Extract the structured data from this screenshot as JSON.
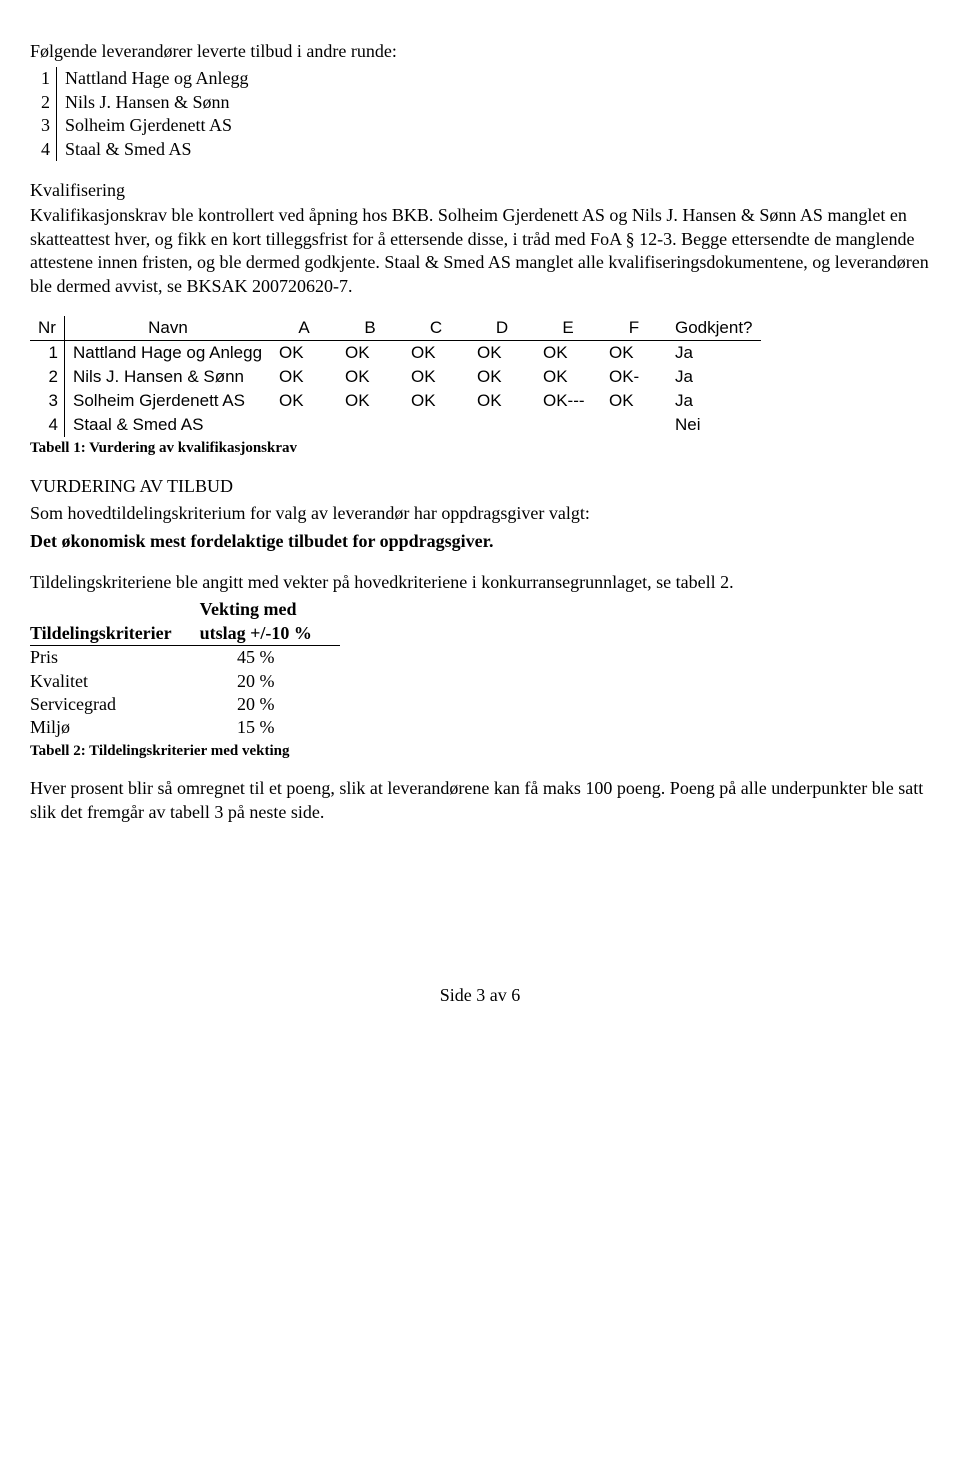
{
  "intro_line": "Følgende leverandører leverte tilbud i andre runde:",
  "suppliers": [
    {
      "nr": "1",
      "name": "Nattland Hage og Anlegg"
    },
    {
      "nr": "2",
      "name": "Nils J. Hansen & Sønn"
    },
    {
      "nr": "3",
      "name": "Solheim Gjerdenett AS"
    },
    {
      "nr": "4",
      "name": "Staal & Smed AS"
    }
  ],
  "kvalifisering": {
    "heading": "Kvalifisering",
    "body": "Kvalifikasjonskrav ble kontrollert ved åpning hos BKB. Solheim Gjerdenett AS og Nils J. Hansen & Sønn AS manglet en skatteattest hver, og fikk en kort tilleggsfrist for å ettersende disse, i tråd med FoA § 12-3. Begge ettersendte de manglende attestene innen fristen, og ble dermed godkjente. Staal & Smed AS manglet alle kvalifiseringsdokumentene, og leverandøren ble dermed avvist, se BKSAK 200720620-7."
  },
  "qual_table": {
    "headers": {
      "nr": "Nr",
      "navn": "Navn",
      "a": "A",
      "b": "B",
      "c": "C",
      "d": "D",
      "e": "E",
      "f": "F",
      "godkjent": "Godkjent?"
    },
    "rows": [
      {
        "nr": "1",
        "navn": "Nattland Hage og Anlegg",
        "a": "OK",
        "b": "OK",
        "c": "OK",
        "d": "OK",
        "e": "OK",
        "f": "OK",
        "godkjent": "Ja"
      },
      {
        "nr": "2",
        "navn": "Nils J. Hansen & Sønn",
        "a": "OK",
        "b": "OK",
        "c": "OK",
        "d": "OK",
        "e": "OK",
        "f": "OK-",
        "godkjent": "Ja"
      },
      {
        "nr": "3",
        "navn": "Solheim Gjerdenett AS",
        "a": "OK",
        "b": "OK",
        "c": "OK",
        "d": "OK",
        "e": "OK---",
        "f": "OK",
        "godkjent": "Ja"
      },
      {
        "nr": "4",
        "navn": "Staal & Smed AS",
        "a": "",
        "b": "",
        "c": "",
        "d": "",
        "e": "",
        "f": "",
        "godkjent": "Nei"
      }
    ],
    "caption": "Tabell 1: Vurdering av kvalifikasjonskrav"
  },
  "vurdering": {
    "heading": "VURDERING AV TILBUD",
    "line": "Som hovedtildelingskriterium for valg av leverandør har oppdragsgiver valgt:",
    "bold_line": "Det økonomisk mest fordelaktige tilbudet for oppdragsgiver."
  },
  "weighting_intro": "Tildelingskriteriene ble angitt med vekter på hovedkriteriene i konkurransegrunnlaget, se tabell 2.",
  "weight_table": {
    "col1_header": "Tildelingskriterier",
    "col2_header_line1": "Vekting med",
    "col2_header_line2": "utslag +/-10 %",
    "rows": [
      {
        "label": "Pris",
        "value": "45 %"
      },
      {
        "label": "Kvalitet",
        "value": "20 %"
      },
      {
        "label": "Servicegrad",
        "value": "20 %"
      },
      {
        "label": "Miljø",
        "value": "15 %"
      }
    ],
    "caption": "Tabell 2: Tildelingskriterier med vekting"
  },
  "closing_para": "Hver prosent blir så omregnet til et poeng, slik at leverandørene kan få maks 100 poeng. Poeng på alle underpunkter ble satt slik det fremgår av tabell 3 på neste side.",
  "footer": "Side 3 av 6"
}
